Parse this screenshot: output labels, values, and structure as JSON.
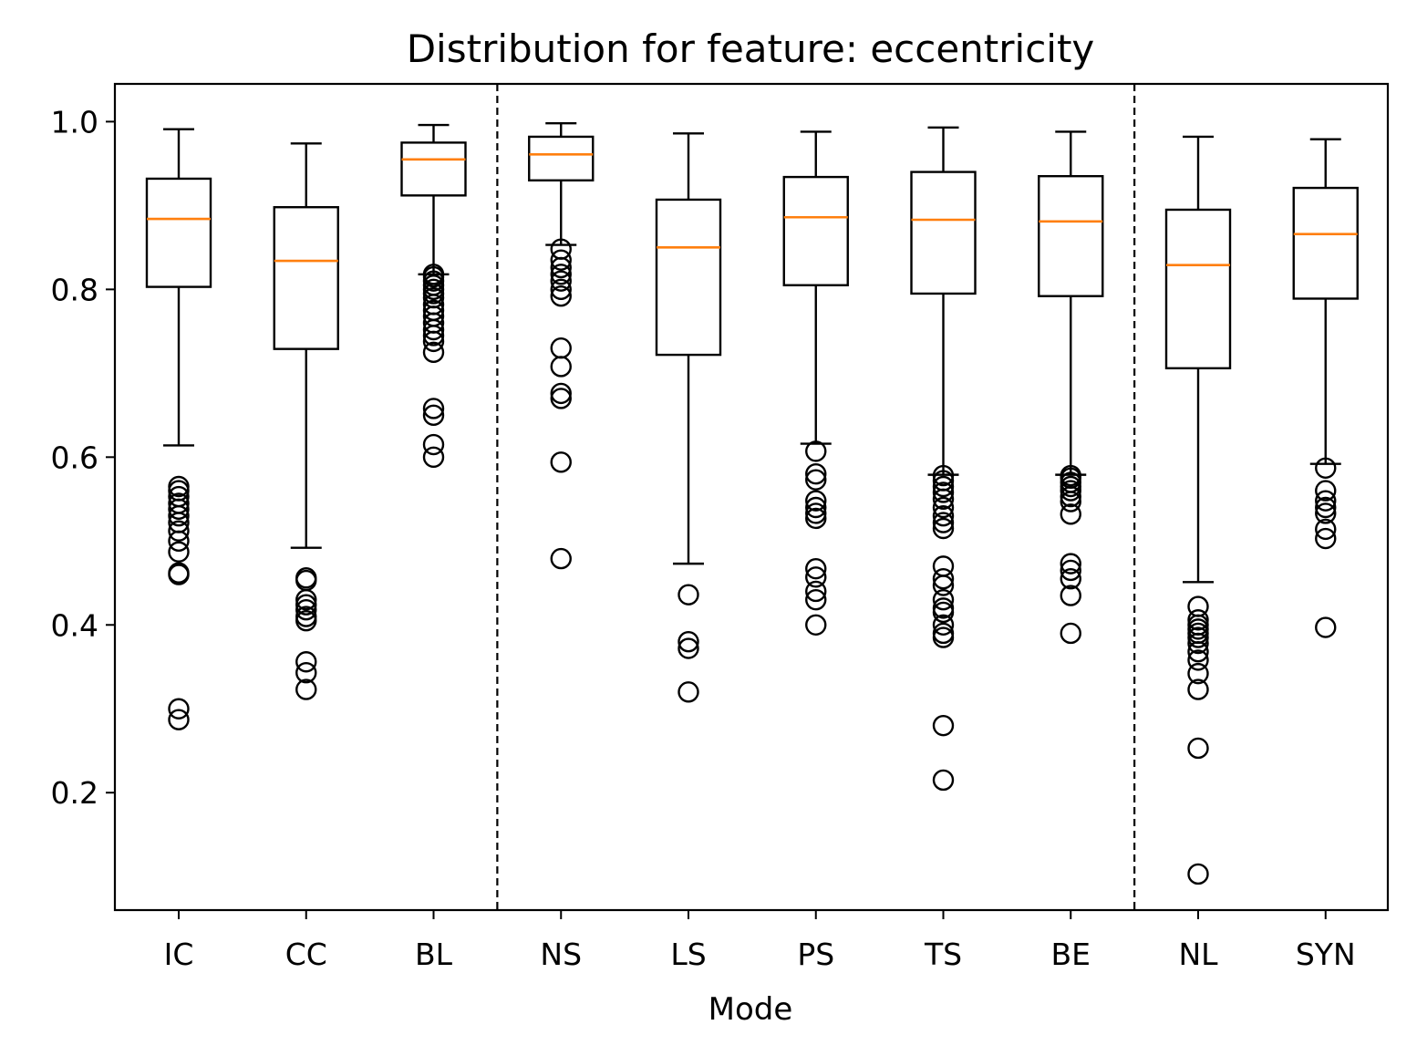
{
  "chart_data": {
    "type": "box",
    "title": "Distribution for feature: eccentricity",
    "xlabel": "Mode",
    "ylabel": "",
    "ylim": [
      0.06,
      1.045
    ],
    "yticks": [
      0.2,
      0.4,
      0.6,
      0.8,
      1.0
    ],
    "ytick_labels": [
      "0.2",
      "0.4",
      "0.6",
      "0.8",
      "1.0"
    ],
    "group_separators_after": [
      "BL",
      "BE"
    ],
    "median_color": "#ff7f0e",
    "box_color": "#000000",
    "boxes": [
      {
        "category": "IC",
        "whisker_low": 0.614,
        "q1": 0.803,
        "median": 0.884,
        "q3": 0.932,
        "whisker_high": 0.991,
        "outliers": [
          0.565,
          0.56,
          0.553,
          0.545,
          0.538,
          0.53,
          0.522,
          0.512,
          0.5,
          0.487,
          0.462,
          0.46,
          0.3,
          0.287
        ]
      },
      {
        "category": "CC",
        "whisker_low": 0.492,
        "q1": 0.729,
        "median": 0.834,
        "q3": 0.898,
        "whisker_high": 0.974,
        "outliers": [
          0.456,
          0.453,
          0.43,
          0.424,
          0.418,
          0.41,
          0.405,
          0.356,
          0.343,
          0.323
        ]
      },
      {
        "category": "BL",
        "whisker_low": 0.818,
        "q1": 0.912,
        "median": 0.955,
        "q3": 0.975,
        "whisker_high": 0.996,
        "outliers": [
          0.818,
          0.815,
          0.81,
          0.805,
          0.8,
          0.795,
          0.79,
          0.782,
          0.775,
          0.768,
          0.76,
          0.752,
          0.745,
          0.738,
          0.725,
          0.658,
          0.65,
          0.615,
          0.6
        ]
      },
      {
        "category": "NS",
        "whisker_low": 0.853,
        "q1": 0.93,
        "median": 0.961,
        "q3": 0.982,
        "whisker_high": 0.998,
        "outliers": [
          0.848,
          0.835,
          0.826,
          0.818,
          0.81,
          0.8,
          0.792,
          0.73,
          0.708,
          0.676,
          0.67,
          0.594,
          0.479
        ]
      },
      {
        "category": "LS",
        "whisker_low": 0.473,
        "q1": 0.722,
        "median": 0.85,
        "q3": 0.907,
        "whisker_high": 0.986,
        "outliers": [
          0.436,
          0.38,
          0.372,
          0.32
        ]
      },
      {
        "category": "PS",
        "whisker_low": 0.616,
        "q1": 0.805,
        "median": 0.886,
        "q3": 0.934,
        "whisker_high": 0.988,
        "outliers": [
          0.607,
          0.58,
          0.573,
          0.548,
          0.54,
          0.533,
          0.527,
          0.467,
          0.457,
          0.44,
          0.43,
          0.4
        ]
      },
      {
        "category": "TS",
        "whisker_low": 0.579,
        "q1": 0.795,
        "median": 0.883,
        "q3": 0.94,
        "whisker_high": 0.993,
        "outliers": [
          0.578,
          0.572,
          0.565,
          0.558,
          0.55,
          0.54,
          0.53,
          0.522,
          0.515,
          0.47,
          0.455,
          0.447,
          0.43,
          0.42,
          0.415,
          0.4,
          0.39,
          0.385,
          0.28,
          0.215
        ]
      },
      {
        "category": "BE",
        "whisker_low": 0.579,
        "q1": 0.792,
        "median": 0.881,
        "q3": 0.935,
        "whisker_high": 0.988,
        "outliers": [
          0.578,
          0.575,
          0.57,
          0.565,
          0.56,
          0.553,
          0.547,
          0.532,
          0.473,
          0.465,
          0.455,
          0.435,
          0.39
        ]
      },
      {
        "category": "NL",
        "whisker_low": 0.451,
        "q1": 0.706,
        "median": 0.829,
        "q3": 0.895,
        "whisker_high": 0.982,
        "outliers": [
          0.422,
          0.406,
          0.4,
          0.395,
          0.39,
          0.385,
          0.378,
          0.368,
          0.358,
          0.342,
          0.323,
          0.253,
          0.103
        ]
      },
      {
        "category": "SYN",
        "whisker_low": 0.592,
        "q1": 0.789,
        "median": 0.866,
        "q3": 0.921,
        "whisker_high": 0.979,
        "outliers": [
          0.587,
          0.56,
          0.548,
          0.54,
          0.533,
          0.514,
          0.503,
          0.397
        ]
      }
    ]
  }
}
